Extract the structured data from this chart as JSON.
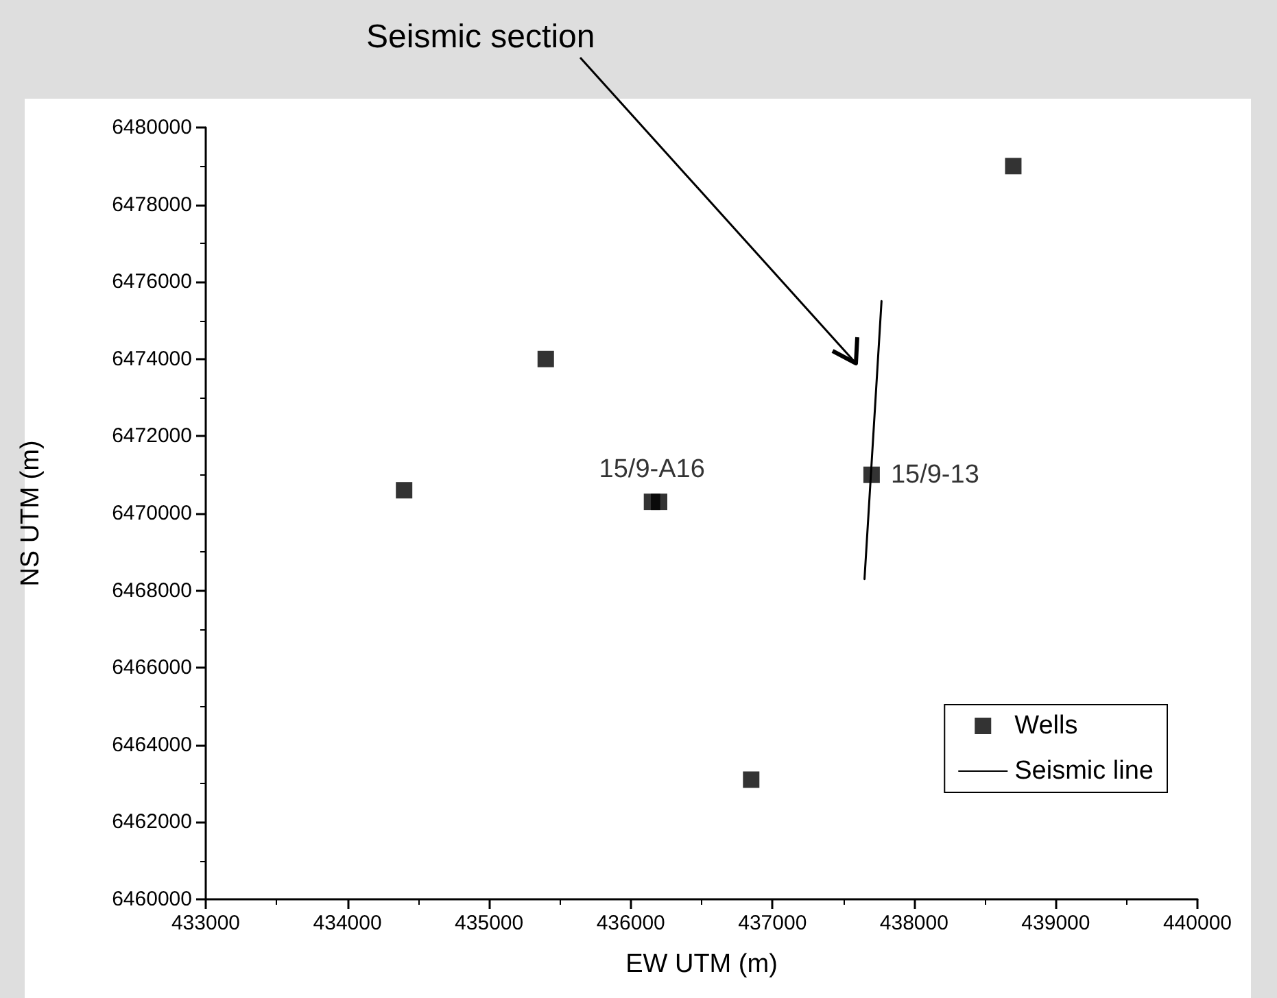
{
  "chart_data": {
    "type": "scatter",
    "title": "Seismic section",
    "xlabel": "EW UTM (m)",
    "ylabel": "NS UTM (m)",
    "xlim": [
      433000,
      440000
    ],
    "xticks": [
      433000,
      434000,
      435000,
      436000,
      437000,
      438000,
      439000,
      440000
    ],
    "ylim": [
      6460000,
      6480000
    ],
    "yticks": [
      6460000,
      6462000,
      6464000,
      6466000,
      6468000,
      6470000,
      6472000,
      6474000,
      6476000,
      6478000,
      6480000
    ],
    "grid": false,
    "legend": "bottom right",
    "series": [
      {
        "name": "Wells",
        "marker": "square",
        "color": "#000000",
        "x": [
          434400,
          435400,
          436150,
          436200,
          437700,
          436850,
          438700
        ],
        "values": [
          6470600,
          6474000,
          6470300,
          6470300,
          6471000,
          6463100,
          6479000
        ]
      },
      {
        "name": "Seismic line",
        "type": "line",
        "line_style": "solid",
        "marker": "none",
        "color": "#000000",
        "x": [
          437650,
          437770
        ],
        "values": [
          6468300,
          6475500
        ]
      }
    ],
    "annotations": [
      {
        "text": "15/9-A16",
        "x": 436150,
        "y": 6470300
      },
      {
        "text": "15/9-13",
        "x": 437700,
        "y": 6471000
      }
    ]
  }
}
